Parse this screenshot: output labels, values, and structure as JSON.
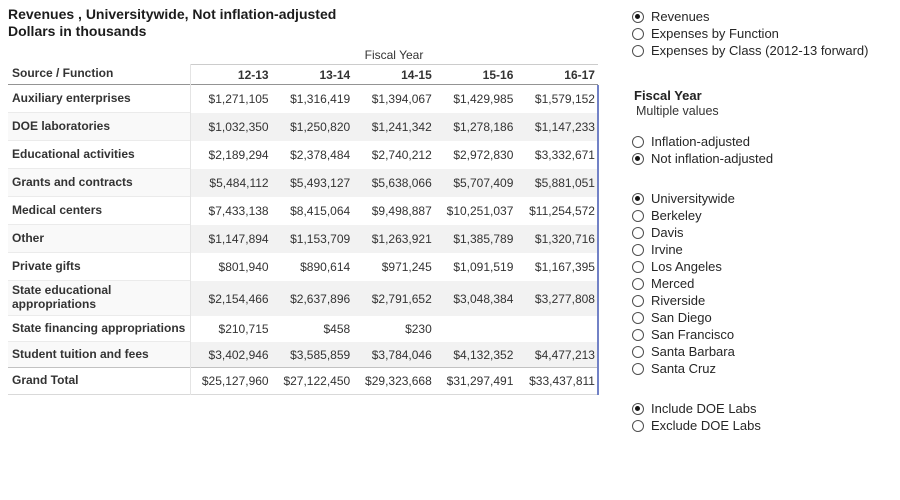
{
  "title": {
    "line1": "Revenues , Universitywide, Not inflation-adjusted",
    "line2": "Dollars in thousands"
  },
  "table": {
    "fiscal_year_label": "Fiscal Year",
    "source_header": "Source / Function",
    "year_columns": [
      "12-13",
      "13-14",
      "14-15",
      "15-16",
      "16-17"
    ],
    "rows": [
      {
        "label": "Auxiliary enterprises",
        "values": [
          "$1,271,105",
          "$1,316,419",
          "$1,394,067",
          "$1,429,985",
          "$1,579,152"
        ]
      },
      {
        "label": "DOE laboratories",
        "values": [
          "$1,032,350",
          "$1,250,820",
          "$1,241,342",
          "$1,278,186",
          "$1,147,233"
        ]
      },
      {
        "label": "Educational activities",
        "values": [
          "$2,189,294",
          "$2,378,484",
          "$2,740,212",
          "$2,972,830",
          "$3,332,671"
        ]
      },
      {
        "label": "Grants and contracts",
        "values": [
          "$5,484,112",
          "$5,493,127",
          "$5,638,066",
          "$5,707,409",
          "$5,881,051"
        ]
      },
      {
        "label": "Medical centers",
        "values": [
          "$7,433,138",
          "$8,415,064",
          "$9,498,887",
          "$10,251,037",
          "$11,254,572"
        ]
      },
      {
        "label": "Other",
        "values": [
          "$1,147,894",
          "$1,153,709",
          "$1,263,921",
          "$1,385,789",
          "$1,320,716"
        ]
      },
      {
        "label": "Private gifts",
        "values": [
          "$801,940",
          "$890,614",
          "$971,245",
          "$1,091,519",
          "$1,167,395"
        ]
      },
      {
        "label": "State educational appropriations",
        "values": [
          "$2,154,466",
          "$2,637,896",
          "$2,791,652",
          "$3,048,384",
          "$3,277,808"
        ]
      },
      {
        "label": "State financing appropriations",
        "values": [
          "$210,715",
          "$458",
          "$230",
          "",
          ""
        ]
      },
      {
        "label": "Student tuition and fees",
        "values": [
          "$3,402,946",
          "$3,585,859",
          "$3,784,046",
          "$4,132,352",
          "$4,477,213"
        ]
      }
    ],
    "grand_total": {
      "label": "Grand Total",
      "values": [
        "$25,127,960",
        "$27,122,450",
        "$29,323,668",
        "$31,297,491",
        "$33,437,811"
      ]
    }
  },
  "filters": {
    "measure": {
      "options": [
        "Revenues",
        "Expenses by Function",
        "Expenses by Class (2012-13 forward)"
      ],
      "selected": "Revenues"
    },
    "fiscal_year_filter": {
      "title": "Fiscal Year",
      "subtitle": "Multiple values"
    },
    "adjustment": {
      "options": [
        "Inflation-adjusted",
        "Not inflation-adjusted"
      ],
      "selected": "Not inflation-adjusted"
    },
    "campus": {
      "options": [
        "Universitywide",
        "Berkeley",
        "Davis",
        "Irvine",
        "Los Angeles",
        "Merced",
        "Riverside",
        "San Diego",
        "San Francisco",
        "Santa Barbara",
        "Santa Cruz"
      ],
      "selected": "Universitywide"
    },
    "doe_labs": {
      "options": [
        "Include DOE Labs",
        "Exclude DOE Labs"
      ],
      "selected": "Include DOE Labs"
    }
  },
  "colors": {
    "row_band": "#f2f2f2",
    "header_rule": "#949494",
    "table_edge_accent": "#7282c6",
    "text": "#333333"
  }
}
